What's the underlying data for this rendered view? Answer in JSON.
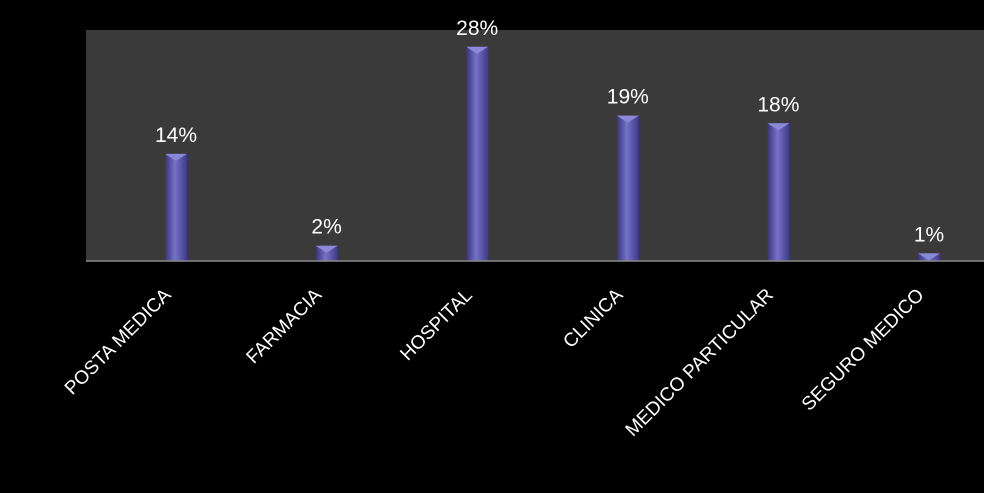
{
  "colors": {
    "background": "#000000",
    "plot_area": "#3a3a3a",
    "bar": "#5a55a8",
    "bar_highlight": "#8c88d8",
    "bar_shadow": "#36327a",
    "text": "#ffffff",
    "axis": "#8a8a8a"
  },
  "chart_data": {
    "type": "bar",
    "categories": [
      "POSTA MEDICA",
      "FARMACIA",
      "HOSPITAL",
      "CLINICA",
      "MEDICO PARTICULAR",
      "SEGURO MEDICO"
    ],
    "values": [
      14,
      2,
      28,
      19,
      18,
      1
    ],
    "data_labels": [
      "14%",
      "2%",
      "28%",
      "19%",
      "18%",
      "1%"
    ],
    "title": "",
    "xlabel": "",
    "ylabel": "",
    "ylim": [
      0,
      30
    ],
    "grid": false,
    "legend": "none"
  }
}
